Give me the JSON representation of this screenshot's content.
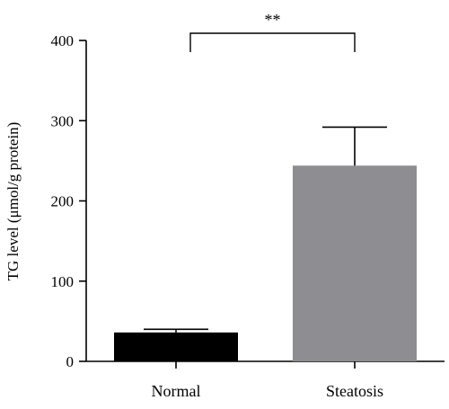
{
  "chart_data": {
    "type": "bar",
    "title": "",
    "xlabel": "",
    "ylabel": "TG level (μmol/g protein)",
    "categories": [
      "Normal",
      "Steatosis"
    ],
    "values": [
      36,
      244
    ],
    "errors": [
      4,
      48
    ],
    "ylim": [
      0,
      400
    ],
    "yticks": [
      "0",
      "100",
      "200",
      "300",
      "400"
    ],
    "grid": false,
    "significance": {
      "between": [
        0,
        1
      ],
      "label": "**"
    },
    "colors": [
      "#000000",
      "#8e8d91"
    ]
  }
}
